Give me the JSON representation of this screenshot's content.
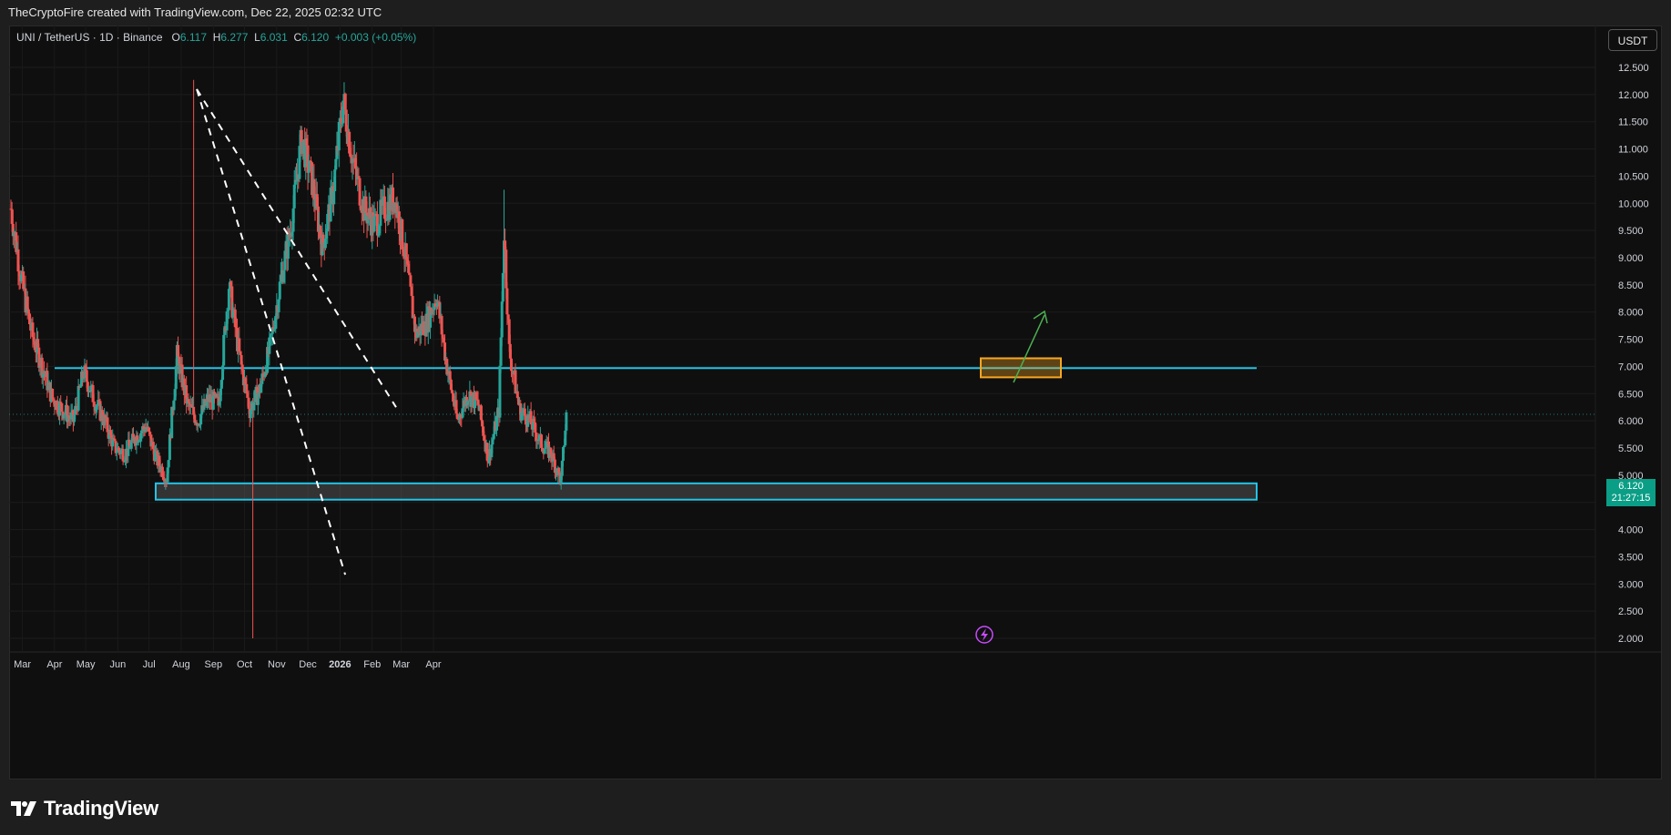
{
  "attribution": "TheCryptoFire created with TradingView.com, Dec 22, 2025 02:32 UTC",
  "symbol_label": "UNI / TetherUS · 1D · Binance",
  "ohlc": {
    "o_label": "O",
    "o": "6.117",
    "h_label": "H",
    "h": "6.277",
    "l_label": "L",
    "l": "6.031",
    "c_label": "C",
    "c": "6.120",
    "change": "+0.003 (+0.05%)"
  },
  "currency_button": "USDT",
  "last_price": {
    "value": "6.120",
    "countdown": "21:27:15"
  },
  "brand_name": "TradingView",
  "colors": {
    "up": "#26a69a",
    "down": "#ef5350",
    "zone": "#22c3e6",
    "target": "#f5a623",
    "arrow": "#4caf50",
    "bg": "#0f0f0f"
  },
  "chart_data": {
    "type": "candlestick",
    "x_ticks": [
      "Mar",
      "Apr",
      "May",
      "Jun",
      "Jul",
      "Aug",
      "Sep",
      "Oct",
      "Nov",
      "Dec",
      "2026",
      "Feb",
      "Mar",
      "Apr"
    ],
    "y_ticks": [
      "12.500",
      "12.000",
      "11.500",
      "11.000",
      "10.500",
      "10.000",
      "9.500",
      "9.000",
      "8.500",
      "8.000",
      "7.500",
      "7.000",
      "6.500",
      "6.000",
      "5.500",
      "5.000",
      "4.500",
      "4.000",
      "3.500",
      "3.000",
      "2.500",
      "2.000"
    ],
    "ylim": [
      2.0,
      12.5
    ],
    "start_date": "2025-02-18",
    "approx_price_path": [
      [
        0,
        9.9
      ],
      [
        10,
        8.6
      ],
      [
        20,
        7.6
      ],
      [
        30,
        7.0
      ],
      [
        40,
        6.4
      ],
      [
        50,
        6.2
      ],
      [
        60,
        6.0
      ],
      [
        70,
        6.9
      ],
      [
        80,
        6.4
      ],
      [
        90,
        6.0
      ],
      [
        100,
        5.5
      ],
      [
        110,
        5.4
      ],
      [
        120,
        5.7
      ],
      [
        130,
        5.9
      ],
      [
        140,
        5.3
      ],
      [
        150,
        4.95
      ],
      [
        160,
        7.2
      ],
      [
        170,
        6.3
      ],
      [
        180,
        6.0
      ],
      [
        190,
        6.4
      ],
      [
        200,
        6.3
      ],
      [
        210,
        8.5
      ],
      [
        220,
        7.2
      ],
      [
        230,
        6.2
      ],
      [
        240,
        6.6
      ],
      [
        250,
        7.4
      ],
      [
        260,
        8.6
      ],
      [
        270,
        9.6
      ],
      [
        280,
        11.2
      ],
      [
        290,
        10.4
      ],
      [
        300,
        9.2
      ],
      [
        310,
        10.2
      ],
      [
        320,
        11.9
      ],
      [
        330,
        10.7
      ],
      [
        340,
        9.9
      ],
      [
        350,
        9.6
      ],
      [
        360,
        9.9
      ],
      [
        370,
        10.1
      ],
      [
        380,
        9.0
      ],
      [
        390,
        7.6
      ],
      [
        400,
        7.8
      ],
      [
        410,
        8.3
      ],
      [
        420,
        7.0
      ],
      [
        430,
        6.0
      ],
      [
        440,
        6.5
      ],
      [
        450,
        6.3
      ],
      [
        460,
        5.3
      ],
      [
        470,
        6.2
      ],
      [
        475,
        9.5
      ],
      [
        480,
        7.3
      ],
      [
        490,
        6.2
      ],
      [
        500,
        6.0
      ],
      [
        510,
        5.6
      ],
      [
        520,
        5.4
      ],
      [
        530,
        4.9
      ],
      [
        535,
        6.1
      ]
    ],
    "horizontal_level": 6.97,
    "support_zone": [
      4.55,
      4.85
    ],
    "target_zone": [
      6.8,
      7.15
    ],
    "trendlines": [
      {
        "from": [
          "2025-08-16",
          12.1
        ],
        "to": [
          "2026-02-24",
          6.25
        ]
      },
      {
        "from": [
          "2025-08-16",
          12.1
        ],
        "to": [
          "2026-01-06",
          3.17
        ]
      }
    ]
  }
}
